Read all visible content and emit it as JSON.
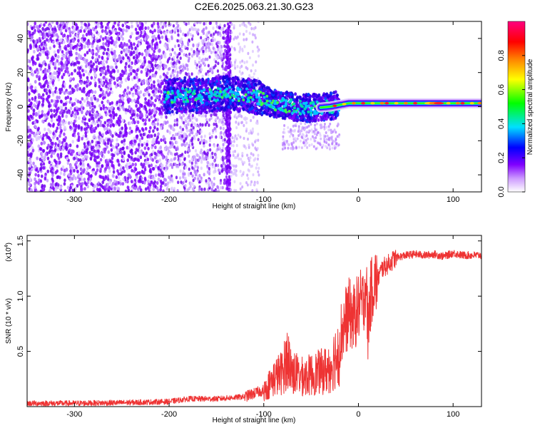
{
  "title": "C2E6.2025.063.21.30.G23",
  "chart_data": [
    {
      "type": "heatmap",
      "xlabel": "Height of straight line (km)",
      "ylabel": "Frequency (Hz)",
      "xlim": [
        -350,
        130
      ],
      "ylim": [
        -50,
        50
      ],
      "xticks": [
        -300,
        -200,
        -100,
        0,
        100
      ],
      "yticks": [
        -40,
        -20,
        0,
        20,
        40
      ],
      "colorbar": {
        "label": "Normalized spectral amplitude",
        "range": [
          0,
          1
        ],
        "ticks": [
          "0.0",
          "0.2",
          "0.4",
          "0.6",
          "0.8"
        ],
        "colors": [
          "#ffffff",
          "#cc99ff",
          "#8000ff",
          "#0000ff",
          "#00e0ff",
          "#00ff00",
          "#ffff00",
          "#ff8000",
          "#ff0000",
          "#ff0080"
        ]
      },
      "ridge": [
        {
          "x": -205,
          "y": 6
        },
        {
          "x": -180,
          "y": 7
        },
        {
          "x": -160,
          "y": 6
        },
        {
          "x": -140,
          "y": 8
        },
        {
          "x": -110,
          "y": 6
        },
        {
          "x": -90,
          "y": 2
        },
        {
          "x": -70,
          "y": 0
        },
        {
          "x": -50,
          "y": -1
        },
        {
          "x": -30,
          "y": 0
        },
        {
          "x": -10,
          "y": 2
        },
        {
          "x": 0,
          "y": 2
        },
        {
          "x": 20,
          "y": 2
        },
        {
          "x": 50,
          "y": 2
        },
        {
          "x": 80,
          "y": 2
        },
        {
          "x": 100,
          "y": 2
        },
        {
          "x": 130,
          "y": 2
        }
      ]
    },
    {
      "type": "line",
      "xlabel": "Height of straight line (km)",
      "ylabel": "SNR (10 * v/v)",
      "yscale_label": "(x10",
      "yscale_exp": "4",
      "yscale_close": ")",
      "xlim": [
        -350,
        130
      ],
      "ylim": [
        0,
        15500
      ],
      "xticks": [
        -300,
        -200,
        -100,
        0,
        100
      ],
      "yticks": [
        {
          "value": 5000,
          "label": "0.5"
        },
        {
          "value": 10000,
          "label": "1.0"
        },
        {
          "value": 15000,
          "label": "1.5"
        }
      ],
      "color": "#ee3333",
      "series": [
        {
          "x": [
            -350,
            -300,
            -250,
            -200,
            -180,
            -150,
            -120,
            -100,
            -90,
            -80,
            -75,
            -70,
            -60,
            -50,
            -40,
            -30,
            -25,
            -20,
            -15,
            -10,
            -5,
            0,
            5,
            8,
            10,
            12,
            15,
            20,
            25,
            30,
            40,
            50,
            60,
            70,
            80,
            90,
            100,
            110,
            120,
            130
          ],
          "values": [
            300,
            300,
            350,
            450,
            700,
            700,
            900,
            1500,
            2800,
            3500,
            5000,
            3500,
            3000,
            3200,
            3500,
            3800,
            5000,
            6000,
            7500,
            8500,
            8000,
            9000,
            9500,
            11500,
            7000,
            9500,
            11000,
            11500,
            12500,
            12800,
            13500,
            13700,
            13800,
            13700,
            13800,
            13600,
            13900,
            13700,
            13700,
            13700
          ]
        }
      ]
    }
  ]
}
